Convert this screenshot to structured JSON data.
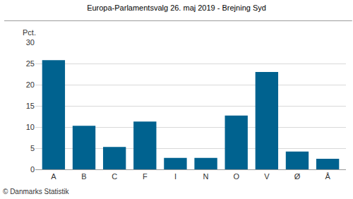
{
  "chart_data": {
    "type": "bar",
    "title": "Europa-Parlamentsvalg 26. maj 2019 - Brejning Syd",
    "ylabel": "Pct.",
    "categories": [
      "A",
      "B",
      "C",
      "F",
      "I",
      "N",
      "O",
      "V",
      "Ø",
      "Å"
    ],
    "values": [
      25.8,
      10.3,
      5.3,
      11.3,
      2.7,
      2.7,
      12.7,
      23.0,
      4.2,
      2.5
    ],
    "color": "#00628f",
    "ylim": [
      0,
      30
    ],
    "yticks": [
      0,
      5,
      10,
      15,
      20,
      25,
      30
    ],
    "grid": true,
    "annotations": [
      {
        "text": "© Danmarks Statistik"
      }
    ]
  }
}
